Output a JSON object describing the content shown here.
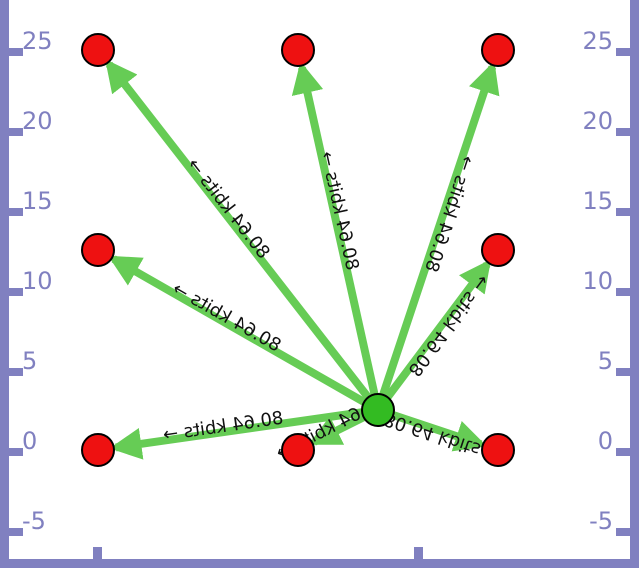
{
  "diagram": {
    "axis_color": "#8080c0",
    "edge_color": "#66cc55",
    "node_fill": "#ee1111",
    "hub_fill": "#33bb22",
    "y_ticks_left": [
      "25",
      "20",
      "15",
      "10",
      "5",
      "0",
      "-5"
    ],
    "y_ticks_right": [
      "25",
      "20",
      "15",
      "10",
      "5",
      "0",
      "-5"
    ],
    "edge_label": "80.64 kbits →",
    "nodes": [
      {
        "id": "hub",
        "x": 2.0,
        "y": 2.5,
        "kind": "hub"
      },
      {
        "id": "n1",
        "x": -5.0,
        "y": 25.0,
        "kind": "leaf"
      },
      {
        "id": "n2",
        "x": 0.0,
        "y": 25.0,
        "kind": "leaf"
      },
      {
        "id": "n3",
        "x": 5.0,
        "y": 25.0,
        "kind": "leaf"
      },
      {
        "id": "n4",
        "x": -5.0,
        "y": 12.5,
        "kind": "leaf"
      },
      {
        "id": "n5",
        "x": 5.0,
        "y": 12.5,
        "kind": "leaf"
      },
      {
        "id": "n6",
        "x": -5.0,
        "y": 0.0,
        "kind": "leaf"
      },
      {
        "id": "n7",
        "x": 0.0,
        "y": 0.0,
        "kind": "leaf"
      },
      {
        "id": "n8",
        "x": 5.0,
        "y": 0.0,
        "kind": "leaf"
      }
    ],
    "edges": [
      {
        "from": "hub",
        "to": "n1",
        "label": "80.64 kbits →"
      },
      {
        "from": "hub",
        "to": "n2",
        "label": "80.64 kbits →"
      },
      {
        "from": "hub",
        "to": "n3",
        "label": "80.64 kbits →"
      },
      {
        "from": "hub",
        "to": "n4",
        "label": "80.64 kbits →"
      },
      {
        "from": "hub",
        "to": "n5",
        "label": "80.64 kbits →"
      },
      {
        "from": "hub",
        "to": "n6",
        "label": "80.64 kbits →"
      },
      {
        "from": "hub",
        "to": "n7",
        "label": "80.64 kbits →"
      },
      {
        "from": "hub",
        "to": "n8",
        "label": "80.64 kbits →"
      }
    ]
  }
}
